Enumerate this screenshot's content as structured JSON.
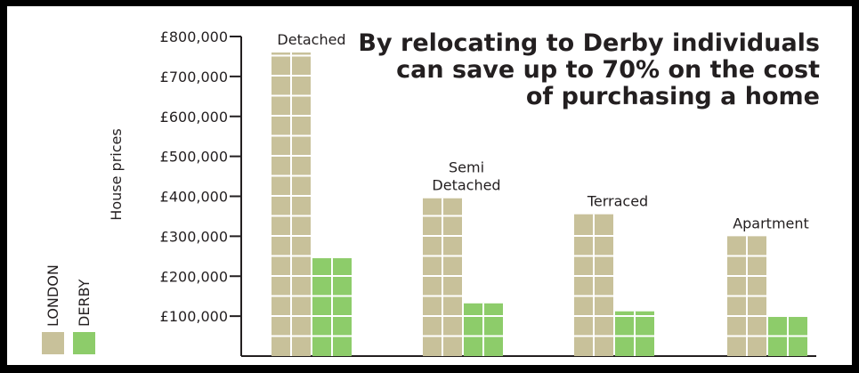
{
  "chart_data": {
    "type": "bar",
    "title_lines": [
      "By relocating to Derby individuals",
      "can save up to 70% on the cost",
      "of purchasing a home"
    ],
    "ylabel": "House prices",
    "ylim": [
      0,
      800000
    ],
    "yticks": [
      {
        "value": 100000,
        "label": "£100,000"
      },
      {
        "value": 200000,
        "label": "£200,000"
      },
      {
        "value": 300000,
        "label": "£300,000"
      },
      {
        "value": 400000,
        "label": "£400,000"
      },
      {
        "value": 500000,
        "label": "£500,000"
      },
      {
        "value": 600000,
        "label": "£600,000"
      },
      {
        "value": 700000,
        "label": "£700,000"
      },
      {
        "value": 800000,
        "label": "£800,000"
      }
    ],
    "categories": [
      {
        "label_lines": [
          "Detached"
        ]
      },
      {
        "label_lines": [
          "Semi",
          "Detached"
        ]
      },
      {
        "label_lines": [
          "Terraced"
        ]
      },
      {
        "label_lines": [
          "Apartment"
        ]
      }
    ],
    "series": [
      {
        "name": "LONDON",
        "color": "#c8c19a",
        "values": [
          760000,
          395000,
          355000,
          300000
        ]
      },
      {
        "name": "DERBY",
        "color": "#8dcc6a",
        "values": [
          245000,
          132000,
          112000,
          98000
        ]
      }
    ],
    "legend_position": "bottom-left",
    "grid": false
  }
}
